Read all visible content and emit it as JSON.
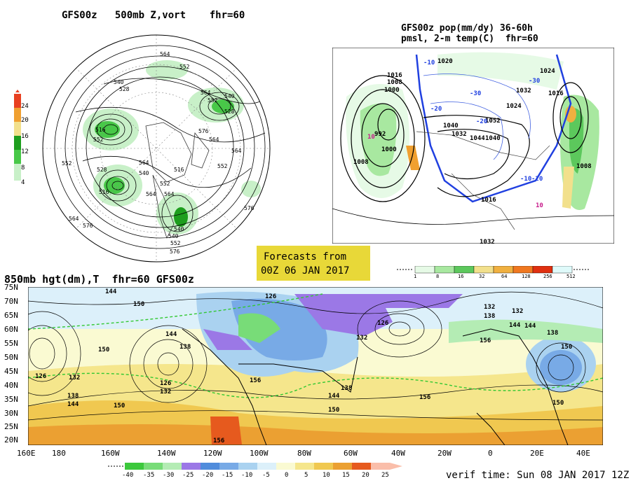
{
  "panel_500mb": {
    "title": "GFS00z   500mb Z,vort    fhr=60",
    "colorbar_ticks": [
      "4",
      "8",
      "12",
      "16",
      "20",
      "24"
    ],
    "contour_labels": [
      "564",
      "552",
      "540",
      "528",
      "516",
      "552",
      "564",
      "576",
      "516",
      "528",
      "540",
      "552",
      "564",
      "564",
      "552",
      "540",
      "528",
      "516",
      "540",
      "552",
      "564",
      "576",
      "576",
      "564",
      "552",
      "540",
      "576",
      "564",
      "552",
      "564"
    ],
    "colors": {
      "light_green": "#c8f0c8",
      "green": "#48c848",
      "dark_green": "#1e9e1e",
      "yellow": "#f2e08c",
      "orange": "#f0a030",
      "red": "#e84020"
    }
  },
  "panel_precip": {
    "title_line1": "GFS00z pop(mm/dy) 36-60h",
    "title_line2": "pmsl, 2-m temp(C)  fhr=60",
    "pressure_labels": [
      "1016",
      "1008",
      "1000",
      "992",
      "1000",
      "1008",
      "1020",
      "1024",
      "1032",
      "1040",
      "1044",
      "1052",
      "1040",
      "1032",
      "1024",
      "1016",
      "1008",
      "1016",
      "1032"
    ],
    "temp_labels": [
      "-10",
      "-20",
      "-30",
      "-30",
      "-20",
      "-10",
      "10",
      "10",
      "-20",
      "-10"
    ],
    "colorbar_ticks": [
      "1",
      "8",
      "16",
      "32",
      "64",
      "128",
      "256",
      "512"
    ],
    "colorbar_colors": [
      "#e6fae6",
      "#a8e8a0",
      "#5cc85c",
      "#f2e08c",
      "#f0b040",
      "#f07820",
      "#e03010",
      "#dffafa"
    ]
  },
  "forecast_box": {
    "line1": "Forecasts from",
    "line2": "00Z 06 JAN 2017",
    "color": "#e8d838"
  },
  "panel_850mb": {
    "title": "850mb hgt(dm),T  fhr=60 GFS00z",
    "lat_labels": [
      "75N",
      "70N",
      "65N",
      "60N",
      "55N",
      "50N",
      "45N",
      "40N",
      "35N",
      "30N",
      "25N",
      "20N"
    ],
    "lon_labels": [
      "160E",
      "180",
      "160W",
      "140W",
      "120W",
      "100W",
      "80W",
      "60W",
      "40W",
      "20W",
      "0",
      "20E",
      "40E"
    ],
    "height_labels": [
      "144",
      "150",
      "126",
      "132",
      "138",
      "144",
      "150",
      "126",
      "132",
      "138",
      "144",
      "150",
      "156",
      "126",
      "132",
      "138",
      "144",
      "150",
      "156",
      "126",
      "132",
      "138",
      "144",
      "150",
      "156",
      "132",
      "138",
      "144",
      "150",
      "156"
    ],
    "colorbar_ticks": [
      "-40",
      "-35",
      "-30",
      "-25",
      "-20",
      "-15",
      "-10",
      "-5",
      "0",
      "5",
      "10",
      "15",
      "20",
      "25"
    ],
    "colorbar_colors": [
      "#3cc83c",
      "#78dc78",
      "#b4ecb4",
      "#9b78e6",
      "#508cdc",
      "#78aae6",
      "#aad2f0",
      "#dcf0fa",
      "#fafad2",
      "#f5e68c",
      "#f0c850",
      "#eba032",
      "#e65a1e",
      "#fabeaa"
    ],
    "verif_time": "verif time: Sun 08 JAN 2017 12Z"
  }
}
